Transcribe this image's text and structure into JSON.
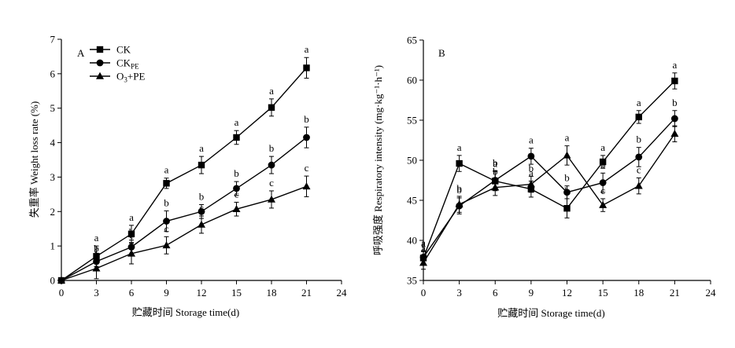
{
  "chart_data": [
    {
      "type": "line",
      "panel_label": "A",
      "xlabel": "贮藏时间 Storage time(d)",
      "ylabel": "失重率 Weight loss rate (%)",
      "xlim": [
        0,
        24
      ],
      "ylim": [
        0,
        7
      ],
      "xticks": [
        0,
        3,
        6,
        9,
        12,
        15,
        18,
        21,
        24
      ],
      "yticks": [
        0,
        1,
        2,
        3,
        4,
        5,
        6,
        7
      ],
      "grid": false,
      "legend_position": "top-left",
      "x": [
        0,
        3,
        6,
        9,
        12,
        15,
        18,
        21
      ],
      "series": [
        {
          "name": "CK",
          "name_main": "CK",
          "name_sub": "",
          "name_tail": "",
          "marker": "square",
          "values": [
            0,
            0.7,
            1.35,
            2.82,
            3.35,
            4.15,
            5.02,
            6.17
          ],
          "errors": [
            0,
            0.3,
            0.25,
            0.15,
            0.25,
            0.2,
            0.25,
            0.3
          ],
          "labels": [
            "",
            "a",
            "a",
            "a",
            "a",
            "a",
            "a",
            "a"
          ]
        },
        {
          "name": "CKPE",
          "name_main": "CK",
          "name_sub": "PE",
          "name_tail": "",
          "marker": "circle",
          "values": [
            0,
            0.55,
            0.97,
            1.72,
            2.0,
            2.67,
            3.35,
            4.15
          ],
          "errors": [
            0,
            0.15,
            0.2,
            0.3,
            0.2,
            0.2,
            0.25,
            0.3
          ],
          "labels": [
            "",
            "b",
            "b",
            "b",
            "b",
            "b",
            "b",
            "b"
          ]
        },
        {
          "name": "O3+PE",
          "name_main": "O",
          "name_sub": "3",
          "name_tail": "+PE",
          "marker": "triangle",
          "values": [
            0,
            0.35,
            0.78,
            1.02,
            1.62,
            2.07,
            2.35,
            2.73
          ],
          "errors": [
            0,
            0.3,
            0.3,
            0.25,
            0.25,
            0.2,
            0.25,
            0.3
          ],
          "labels": [
            "",
            "c",
            "c",
            "c",
            "c",
            "c",
            "c",
            "c"
          ]
        }
      ]
    },
    {
      "type": "line",
      "panel_label": "B",
      "xlabel": "贮藏时间 Storage time(d)",
      "ylabel": "呼吸强度 Respiratory intensity (mg·kg⁻¹·h⁻¹)",
      "xlim": [
        0,
        24
      ],
      "ylim": [
        35,
        65
      ],
      "xticks": [
        0,
        3,
        6,
        9,
        12,
        15,
        18,
        21,
        24
      ],
      "yticks": [
        35,
        40,
        45,
        50,
        55,
        60,
        65
      ],
      "grid": false,
      "x": [
        0,
        3,
        6,
        9,
        12,
        15,
        18,
        21
      ],
      "series": [
        {
          "name": "CK",
          "marker": "square",
          "values": [
            37.8,
            49.6,
            47.4,
            46.4,
            44.0,
            49.8,
            55.4,
            59.9
          ],
          "errors": [
            0.8,
            1.0,
            1.2,
            1.0,
            1.2,
            0.8,
            0.8,
            1.0
          ],
          "labels": [
            "a",
            "a",
            "a",
            "a",
            "b",
            "a",
            "a",
            "a"
          ]
        },
        {
          "name": "CKPE",
          "marker": "circle",
          "values": [
            37.9,
            44.3,
            47.5,
            50.5,
            46.0,
            47.2,
            50.4,
            55.2
          ],
          "errors": [
            0.8,
            1.0,
            1.2,
            1.0,
            0.8,
            1.2,
            1.2,
            1.0
          ],
          "labels": [
            "a",
            "b",
            "b",
            "a",
            "b",
            "b",
            "b",
            "b"
          ]
        },
        {
          "name": "O3+PE",
          "marker": "triangle",
          "values": [
            37.2,
            44.5,
            46.6,
            47.0,
            50.6,
            44.4,
            46.8,
            53.3
          ],
          "errors": [
            0.8,
            1.0,
            1.0,
            1.0,
            1.2,
            0.8,
            1.0,
            1.0
          ],
          "labels": [
            "a",
            "b",
            "b",
            "b",
            "a",
            "c",
            "c",
            "c"
          ]
        }
      ]
    }
  ]
}
